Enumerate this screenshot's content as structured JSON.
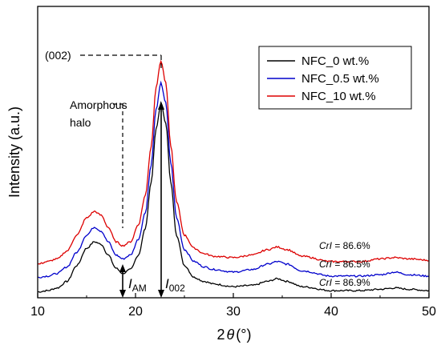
{
  "chart_data": {
    "type": "line",
    "xlabel_prefix": "2",
    "xlabel_symbol": "θ",
    "xlabel_unit": "(°)",
    "ylabel": "Intensity (a.u.)",
    "xlim": [
      10,
      50
    ],
    "x_ticks": [
      "10",
      "20",
      "30",
      "40",
      "50"
    ],
    "y_ticks_shown": false,
    "legend_position": "top-right",
    "series": [
      {
        "name": "NFC_0 wt.%",
        "color": "#000000",
        "points": [
          [
            10,
            0.02
          ],
          [
            11,
            0.03
          ],
          [
            12,
            0.05
          ],
          [
            13,
            0.1
          ],
          [
            14,
            0.22
          ],
          [
            15,
            0.35
          ],
          [
            15.8,
            0.4
          ],
          [
            16.5,
            0.38
          ],
          [
            17.2,
            0.3
          ],
          [
            18,
            0.2
          ],
          [
            18.7,
            0.16
          ],
          [
            19.5,
            0.19
          ],
          [
            20.3,
            0.3
          ],
          [
            21,
            0.5
          ],
          [
            21.6,
            0.85
          ],
          [
            22.1,
            1.25
          ],
          [
            22.6,
            1.45
          ],
          [
            23.1,
            1.3
          ],
          [
            23.6,
            0.85
          ],
          [
            24.2,
            0.45
          ],
          [
            25,
            0.22
          ],
          [
            26,
            0.13
          ],
          [
            27,
            0.1
          ],
          [
            28,
            0.08
          ],
          [
            30,
            0.06
          ],
          [
            32,
            0.07
          ],
          [
            33.5,
            0.1
          ],
          [
            34.5,
            0.12
          ],
          [
            35.5,
            0.1
          ],
          [
            37,
            0.06
          ],
          [
            40,
            0.03
          ],
          [
            43,
            0.03
          ],
          [
            45,
            0.04
          ],
          [
            46.5,
            0.05
          ],
          [
            48,
            0.04
          ],
          [
            50,
            0.03
          ]
        ]
      },
      {
        "name": "NFC_0.5 wt.%",
        "color": "#0000cc",
        "points": [
          [
            10,
            0.13
          ],
          [
            11,
            0.14
          ],
          [
            12,
            0.16
          ],
          [
            13,
            0.21
          ],
          [
            14,
            0.32
          ],
          [
            15,
            0.45
          ],
          [
            15.8,
            0.51
          ],
          [
            16.5,
            0.48
          ],
          [
            17.2,
            0.4
          ],
          [
            18,
            0.3
          ],
          [
            18.7,
            0.27
          ],
          [
            19.5,
            0.3
          ],
          [
            20.3,
            0.42
          ],
          [
            21,
            0.62
          ],
          [
            21.6,
            0.98
          ],
          [
            22.1,
            1.4
          ],
          [
            22.6,
            1.6
          ],
          [
            23.1,
            1.45
          ],
          [
            23.6,
            1.0
          ],
          [
            24.2,
            0.58
          ],
          [
            25,
            0.34
          ],
          [
            26,
            0.25
          ],
          [
            27,
            0.21
          ],
          [
            28,
            0.19
          ],
          [
            30,
            0.17
          ],
          [
            32,
            0.19
          ],
          [
            33.5,
            0.23
          ],
          [
            34.5,
            0.25
          ],
          [
            35.5,
            0.23
          ],
          [
            37,
            0.18
          ],
          [
            40,
            0.14
          ],
          [
            43,
            0.14
          ],
          [
            45,
            0.15
          ],
          [
            46.5,
            0.17
          ],
          [
            48,
            0.15
          ],
          [
            50,
            0.14
          ]
        ]
      },
      {
        "name": "NFC_10 wt.%",
        "color": "#dd0000",
        "points": [
          [
            10,
            0.23
          ],
          [
            11,
            0.25
          ],
          [
            12,
            0.27
          ],
          [
            13,
            0.33
          ],
          [
            14,
            0.45
          ],
          [
            15,
            0.58
          ],
          [
            15.8,
            0.63
          ],
          [
            16.5,
            0.6
          ],
          [
            17.2,
            0.51
          ],
          [
            18,
            0.4
          ],
          [
            18.7,
            0.37
          ],
          [
            19.5,
            0.4
          ],
          [
            20.3,
            0.53
          ],
          [
            21,
            0.75
          ],
          [
            21.6,
            1.12
          ],
          [
            22.1,
            1.57
          ],
          [
            22.6,
            1.77
          ],
          [
            23.1,
            1.6
          ],
          [
            23.6,
            1.13
          ],
          [
            24.2,
            0.7
          ],
          [
            25,
            0.45
          ],
          [
            26,
            0.35
          ],
          [
            27,
            0.31
          ],
          [
            28,
            0.29
          ],
          [
            30,
            0.28
          ],
          [
            32,
            0.3
          ],
          [
            33.5,
            0.34
          ],
          [
            34.5,
            0.36
          ],
          [
            35.5,
            0.34
          ],
          [
            37,
            0.29
          ],
          [
            40,
            0.25
          ],
          [
            43,
            0.25
          ],
          [
            45,
            0.27
          ],
          [
            46.5,
            0.28
          ],
          [
            48,
            0.27
          ],
          [
            50,
            0.26
          ]
        ]
      }
    ],
    "annotations": {
      "peak_label": "(002)",
      "amorphous_label_1": "Amorphous",
      "amorphous_label_2": "halo",
      "crl_prefix": "CrI",
      "crl_values": [
        " = 86.6%",
        " = 86.5%",
        " = 86.9%"
      ],
      "i_am": "I",
      "i_am_sub": "AM",
      "i_002": "I",
      "i_002_sub": "002"
    }
  }
}
